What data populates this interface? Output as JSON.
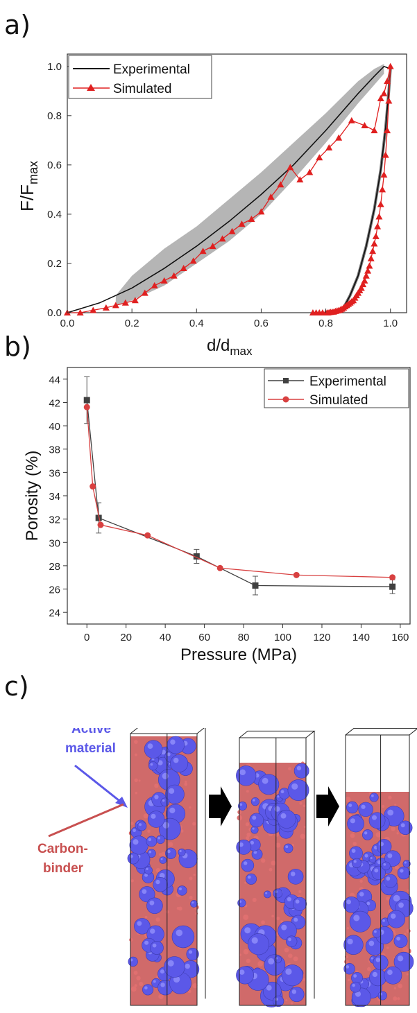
{
  "panels": {
    "a": "a)",
    "b": "b)",
    "c": "c)"
  },
  "chart_data": [
    {
      "type": "line",
      "xlabel": "d/d",
      "xlabel_sub": "max",
      "ylabel": "F/F",
      "ylabel_sub": "max",
      "xlim": [
        0,
        1.05
      ],
      "ylim": [
        0,
        1.05
      ],
      "xticks": [
        "0.0",
        "0.2",
        "0.4",
        "0.6",
        "0.8",
        "1.0"
      ],
      "yticks": [
        "0.0",
        "0.2",
        "0.4",
        "0.6",
        "0.8",
        "1.0"
      ],
      "legend_position": "top-left",
      "colors": {
        "experimental": "#111111",
        "simulated": "#e02020",
        "band": "#b5b5b5"
      },
      "series": [
        {
          "name": "Experimental",
          "marker": "none",
          "loading": [
            [
              0,
              0
            ],
            [
              0.1,
              0.04
            ],
            [
              0.2,
              0.1
            ],
            [
              0.3,
              0.18
            ],
            [
              0.4,
              0.27
            ],
            [
              0.5,
              0.37
            ],
            [
              0.6,
              0.48
            ],
            [
              0.7,
              0.6
            ],
            [
              0.8,
              0.74
            ],
            [
              0.9,
              0.89
            ],
            [
              0.95,
              0.96
            ],
            [
              0.98,
              1.0
            ],
            [
              1.0,
              0.99
            ]
          ],
          "unloading": [
            [
              1.0,
              0.99
            ],
            [
              0.995,
              0.9
            ],
            [
              0.985,
              0.75
            ],
            [
              0.97,
              0.58
            ],
            [
              0.95,
              0.42
            ],
            [
              0.925,
              0.27
            ],
            [
              0.9,
              0.15
            ],
            [
              0.875,
              0.07
            ],
            [
              0.855,
              0.02
            ],
            [
              0.845,
              0.0
            ]
          ],
          "band_upper": [
            [
              0.15,
              0.07
            ],
            [
              0.2,
              0.15
            ],
            [
              0.3,
              0.26
            ],
            [
              0.4,
              0.35
            ],
            [
              0.5,
              0.46
            ],
            [
              0.6,
              0.57
            ],
            [
              0.7,
              0.69
            ],
            [
              0.8,
              0.81
            ],
            [
              0.9,
              0.94
            ],
            [
              0.95,
              0.99
            ],
            [
              0.98,
              1.01
            ]
          ],
          "band_lower": [
            [
              0.98,
              0.97
            ],
            [
              0.9,
              0.85
            ],
            [
              0.8,
              0.69
            ],
            [
              0.7,
              0.54
            ],
            [
              0.6,
              0.4
            ],
            [
              0.5,
              0.29
            ],
            [
              0.4,
              0.2
            ],
            [
              0.3,
              0.11
            ],
            [
              0.2,
              0.05
            ],
            [
              0.15,
              0.03
            ]
          ]
        },
        {
          "name": "Simulated",
          "marker": "triangle",
          "x": [
            0.0,
            0.04,
            0.08,
            0.12,
            0.15,
            0.18,
            0.21,
            0.24,
            0.27,
            0.3,
            0.33,
            0.36,
            0.39,
            0.42,
            0.45,
            0.48,
            0.51,
            0.54,
            0.57,
            0.6,
            0.63,
            0.66,
            0.69,
            0.72,
            0.75,
            0.78,
            0.81,
            0.84,
            0.88,
            0.92,
            0.95,
            0.97,
            0.98,
            0.99,
            1.0,
            0.995,
            0.99,
            0.985,
            0.98,
            0.975,
            0.97,
            0.965,
            0.96,
            0.955,
            0.95,
            0.945,
            0.94,
            0.935,
            0.93,
            0.925,
            0.92,
            0.915,
            0.91,
            0.905,
            0.9,
            0.895,
            0.89,
            0.885,
            0.88,
            0.875,
            0.87,
            0.865,
            0.86,
            0.855,
            0.85,
            0.845,
            0.84,
            0.835,
            0.83,
            0.825,
            0.82,
            0.815,
            0.81,
            0.805,
            0.8,
            0.79,
            0.78,
            0.77,
            0.76
          ],
          "y": [
            0.0,
            0.0,
            0.01,
            0.02,
            0.03,
            0.04,
            0.05,
            0.08,
            0.11,
            0.13,
            0.15,
            0.18,
            0.21,
            0.25,
            0.27,
            0.3,
            0.33,
            0.36,
            0.38,
            0.41,
            0.47,
            0.52,
            0.59,
            0.54,
            0.57,
            0.63,
            0.67,
            0.71,
            0.78,
            0.76,
            0.74,
            0.87,
            0.89,
            0.94,
            1.0,
            0.86,
            0.74,
            0.64,
            0.56,
            0.5,
            0.44,
            0.39,
            0.35,
            0.31,
            0.28,
            0.25,
            0.22,
            0.19,
            0.17,
            0.15,
            0.13,
            0.115,
            0.1,
            0.09,
            0.08,
            0.07,
            0.06,
            0.05,
            0.045,
            0.04,
            0.035,
            0.03,
            0.025,
            0.02,
            0.015,
            0.012,
            0.01,
            0.008,
            0.006,
            0.004,
            0.003,
            0.002,
            0.001,
            0.0,
            0.0,
            0.0,
            0.0,
            0.0,
            0.0
          ]
        }
      ]
    },
    {
      "type": "line",
      "xlabel": "Pressure (MPa)",
      "ylabel": "Porosity (%)",
      "xlim": [
        -10,
        165
      ],
      "ylim": [
        23,
        45
      ],
      "xticks": [
        "0",
        "20",
        "40",
        "60",
        "80",
        "100",
        "120",
        "140",
        "160"
      ],
      "yticks": [
        "24",
        "26",
        "28",
        "30",
        "32",
        "34",
        "36",
        "38",
        "40",
        "42",
        "44"
      ],
      "legend_position": "top-right",
      "colors": {
        "experimental": "#404040",
        "simulated": "#d84040"
      },
      "series": [
        {
          "name": "Experimental",
          "marker": "square",
          "x": [
            0,
            6,
            56,
            86,
            156
          ],
          "y": [
            42.2,
            32.1,
            28.8,
            26.3,
            26.2
          ],
          "err": [
            2.0,
            1.3,
            0.6,
            0.8,
            0.6
          ]
        },
        {
          "name": "Simulated",
          "marker": "circle",
          "x": [
            0,
            3,
            7,
            31,
            68,
            107,
            156
          ],
          "y": [
            41.6,
            34.8,
            31.5,
            30.6,
            27.8,
            27.2,
            27.0
          ]
        }
      ]
    }
  ],
  "panel_c": {
    "annotation_active": [
      "Active",
      "material"
    ],
    "annotation_carbon": [
      "Carbon-",
      "binder"
    ],
    "colors": {
      "active": "#5b58e8",
      "carbon": "#c85050",
      "arrow": "#000000"
    }
  }
}
